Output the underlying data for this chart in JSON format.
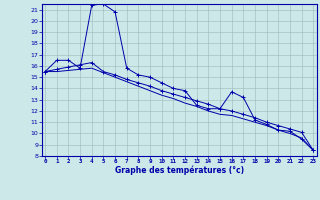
{
  "title": "Graphe des températures (°c)",
  "xlabel_hours": [
    0,
    1,
    2,
    3,
    4,
    5,
    6,
    7,
    8,
    9,
    10,
    11,
    12,
    13,
    14,
    15,
    16,
    17,
    18,
    19,
    20,
    21,
    22,
    23
  ],
  "ylim": [
    8,
    21.5
  ],
  "yticks": [
    8,
    9,
    10,
    11,
    12,
    13,
    14,
    15,
    16,
    17,
    18,
    19,
    20,
    21
  ],
  "background_color": "#cce8e8",
  "plot_bg_color": "#cce8e8",
  "line_color": "#0000aa",
  "grid_color": "#99bbbb",
  "axis_bar_color": "#0000aa",
  "series1": [
    15.5,
    16.5,
    16.5,
    15.8,
    21.4,
    21.5,
    20.8,
    15.8,
    15.2,
    15.0,
    14.5,
    14.0,
    13.8,
    12.5,
    12.2,
    12.2,
    13.7,
    13.2,
    11.2,
    10.8,
    10.3,
    10.2,
    9.5,
    8.5
  ],
  "series2": [
    15.5,
    15.7,
    15.9,
    16.1,
    16.3,
    15.5,
    15.2,
    14.8,
    14.5,
    14.2,
    13.8,
    13.5,
    13.2,
    12.9,
    12.6,
    12.2,
    12.0,
    11.7,
    11.4,
    11.0,
    10.7,
    10.4,
    10.1,
    8.5
  ],
  "series3": [
    15.5,
    15.5,
    15.6,
    15.7,
    15.8,
    15.4,
    15.0,
    14.6,
    14.2,
    13.8,
    13.4,
    13.1,
    12.7,
    12.4,
    12.0,
    11.7,
    11.6,
    11.3,
    11.0,
    10.7,
    10.3,
    10.0,
    9.6,
    8.5
  ]
}
